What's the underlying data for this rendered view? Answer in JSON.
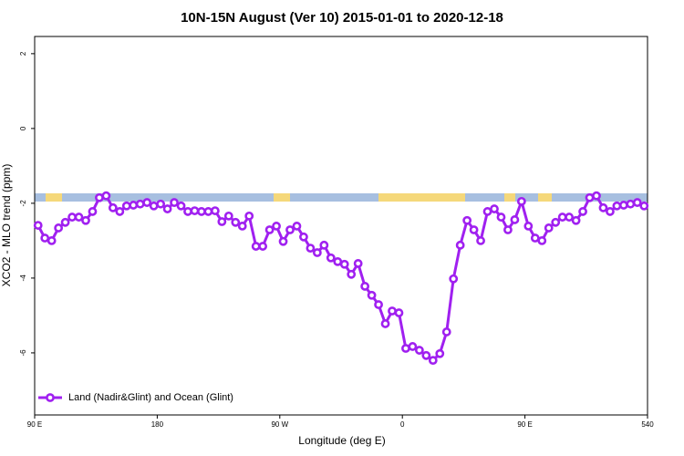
{
  "chart_data": {
    "type": "line",
    "title": "10N-15N August (Ver 10)   2015-01-01 to 2020-12-18",
    "xlabel": "Longitude (deg E)",
    "ylabel": "XCO2 - MLO trend (ppm)",
    "xlim": [
      90,
      540
    ],
    "ylim": [
      -7.66,
      2.46
    ],
    "xticks": [
      {
        "value": 90,
        "label": "90 E"
      },
      180,
      {
        "value": 270,
        "label": "90 W"
      },
      {
        "value": 360,
        "label": "0"
      },
      {
        "value": 450,
        "label": "90 E"
      },
      540
    ],
    "yticks": [
      -6,
      -4,
      -2,
      0,
      2
    ],
    "legend": "bottomleft",
    "x": [
      92.5,
      97.5,
      102.5,
      107.5,
      112.5,
      117.5,
      122.5,
      127.5,
      132.5,
      137.5,
      142.5,
      147.5,
      152.5,
      157.5,
      162.5,
      167.5,
      172.5,
      177.5,
      182.5,
      187.5,
      192.5,
      197.5,
      202.5,
      207.5,
      212.5,
      217.5,
      222.5,
      227.5,
      232.5,
      237.5,
      242.5,
      247.5,
      252.5,
      257.5,
      262.5,
      267.5,
      272.5,
      277.5,
      282.5,
      287.5,
      292.5,
      297.5,
      302.5,
      307.5,
      312.5,
      317.5,
      322.5,
      327.5,
      332.5,
      337.5,
      342.5,
      347.5,
      352.5,
      357.5,
      362.5,
      367.5,
      372.5,
      377.5,
      382.5,
      387.5,
      392.5,
      397.5,
      402.5,
      407.5,
      412.5,
      417.5,
      422.5,
      427.5,
      432.5,
      437.5,
      442.5,
      447.5,
      452.5,
      457.5,
      462.5,
      467.5,
      472.5,
      477.5,
      482.5,
      487.5,
      492.5,
      497.5,
      502.5,
      507.5,
      512.5,
      517.5,
      522.5,
      527.5,
      532.5,
      537.5
    ],
    "series": [
      {
        "name": "Land (Nadir&Glint) and Ocean (Glint)",
        "color": "#a020f0",
        "values": [
          -2.59,
          -2.93,
          -3.0,
          -2.66,
          -2.51,
          -2.37,
          -2.37,
          -2.46,
          -2.22,
          -1.85,
          -1.8,
          -2.12,
          -2.22,
          -2.07,
          -2.05,
          -2.02,
          -1.98,
          -2.07,
          -2.02,
          -2.15,
          -1.98,
          -2.07,
          -2.22,
          -2.2,
          -2.22,
          -2.22,
          -2.2,
          -2.49,
          -2.34,
          -2.51,
          -2.61,
          -2.34,
          -3.15,
          -3.15,
          -2.71,
          -2.61,
          -3.02,
          -2.71,
          -2.61,
          -2.9,
          -3.2,
          -3.32,
          -3.12,
          -3.46,
          -3.56,
          -3.63,
          -3.9,
          -3.61,
          -4.22,
          -4.46,
          -4.71,
          -5.22,
          -4.88,
          -4.93,
          -5.88,
          -5.83,
          -5.93,
          -6.07,
          -6.2,
          -6.02,
          -5.44,
          -4.02,
          -3.12,
          -2.46,
          -2.71,
          -3.0,
          -2.22,
          -2.15,
          -2.37,
          -2.71,
          -2.44,
          -1.95,
          -2.61,
          -2.93,
          -3.0,
          -2.66,
          -2.51,
          -2.37,
          -2.37,
          -2.46,
          -2.22,
          -1.85,
          -1.8,
          -2.12,
          -2.22,
          -2.07,
          -2.05,
          -2.02,
          -1.98,
          -2.07
        ]
      }
    ]
  }
}
